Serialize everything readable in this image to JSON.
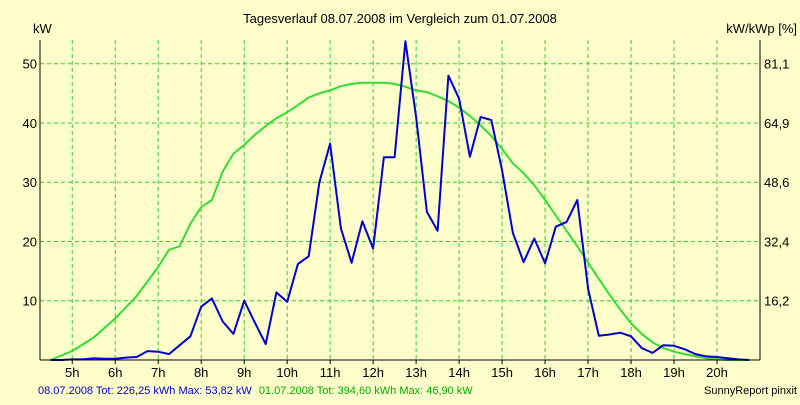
{
  "colors": {
    "background": "#ffffcc",
    "grid": "#33cc33",
    "series_1": "#0000cc",
    "series_2": "#33dd33",
    "axis": "#000000"
  },
  "footer": {
    "series_1_text": "08.07.2008 Tot: 226,25 kWh Max: 53,82 kW",
    "series_2_text": "01.07.2008 Tot: 394,60 kWh Max: 46,90 kW",
    "credit": "SunnyReport pinxit"
  },
  "chart_data": {
    "type": "line",
    "title": "Tagesverlauf 08.07.2008 im Vergleich zum 01.07.2008",
    "ylabel_left": "kW",
    "ylabel_right": "kW/kWp [%]",
    "x_ticks": [
      "5h",
      "6h",
      "7h",
      "8h",
      "9h",
      "10h",
      "11h",
      "12h",
      "13h",
      "14h",
      "15h",
      "16h",
      "17h",
      "18h",
      "19h",
      "20h"
    ],
    "x_tick_hours": [
      5,
      6,
      7,
      8,
      9,
      10,
      11,
      12,
      13,
      14,
      15,
      16,
      17,
      18,
      19,
      20
    ],
    "y_ticks_left": [
      "10",
      "20",
      "30",
      "40",
      "50"
    ],
    "y_tick_values_left": [
      10,
      20,
      30,
      40,
      50
    ],
    "y_ticks_right": [
      "16,2",
      "32,4",
      "48,6",
      "64,9",
      "81,1"
    ],
    "xlim": [
      4.25,
      21.0
    ],
    "ylim": [
      0,
      54
    ],
    "grid": true,
    "legend": "bottom",
    "series": [
      {
        "name": "08.07.2008",
        "x": [
          4.5,
          4.75,
          5.0,
          5.25,
          5.5,
          5.75,
          6.0,
          6.25,
          6.5,
          6.75,
          7.0,
          7.25,
          7.5,
          7.75,
          8.0,
          8.25,
          8.5,
          8.75,
          9.0,
          9.25,
          9.5,
          9.75,
          10.0,
          10.25,
          10.5,
          10.75,
          11.0,
          11.25,
          11.5,
          11.75,
          12.0,
          12.25,
          12.5,
          12.75,
          13.0,
          13.25,
          13.5,
          13.75,
          14.0,
          14.25,
          14.5,
          14.75,
          15.0,
          15.25,
          15.5,
          15.75,
          16.0,
          16.25,
          16.5,
          16.75,
          17.0,
          17.25,
          17.5,
          17.75,
          18.0,
          18.25,
          18.5,
          18.75,
          19.0,
          19.25,
          19.5,
          19.75,
          20.0,
          20.25,
          20.5,
          20.75
        ],
        "y": [
          0,
          0,
          0.1,
          0.1,
          0.3,
          0.2,
          0.2,
          0.4,
          0.5,
          1.5,
          1.4,
          1.0,
          2.5,
          4.0,
          9.0,
          10.4,
          6.5,
          4.4,
          10.0,
          6.3,
          2.7,
          11.4,
          9.8,
          16.2,
          17.5,
          30.0,
          36.5,
          22.2,
          16.4,
          23.4,
          18.8,
          34.2,
          34.2,
          53.8,
          41.0,
          25.0,
          21.8,
          48.0,
          44.1,
          34.3,
          41.0,
          40.5,
          32.0,
          21.5,
          16.5,
          20.5,
          16.3,
          22.5,
          23.3,
          27.0,
          12.0,
          4.1,
          4.3,
          4.6,
          4.0,
          2.0,
          1.2,
          2.5,
          2.4,
          1.8,
          1.0,
          0.6,
          0.5,
          0.3,
          0.1,
          0
        ]
      },
      {
        "name": "01.07.2008",
        "x": [
          4.5,
          5.0,
          5.5,
          6.0,
          6.5,
          7.0,
          7.25,
          7.5,
          7.75,
          8.0,
          8.25,
          8.5,
          8.75,
          9.0,
          9.25,
          9.5,
          9.75,
          10.0,
          10.25,
          10.5,
          10.75,
          11.0,
          11.25,
          11.5,
          11.75,
          12.0,
          12.25,
          12.5,
          12.75,
          13.0,
          13.25,
          13.5,
          13.75,
          14.0,
          14.25,
          14.5,
          14.75,
          15.0,
          15.25,
          15.5,
          15.75,
          16.0,
          16.25,
          16.5,
          16.75,
          17.0,
          17.25,
          17.5,
          17.75,
          18.0,
          18.25,
          18.5,
          18.75,
          19.0,
          19.25,
          19.5,
          19.75,
          20.0,
          20.25,
          20.5,
          20.75
        ],
        "y": [
          0,
          1.5,
          3.8,
          7.0,
          10.8,
          15.7,
          18.6,
          19.2,
          23.0,
          25.8,
          27.0,
          31.8,
          34.8,
          36.3,
          38.0,
          39.5,
          40.8,
          41.8,
          43.0,
          44.3,
          45.0,
          45.5,
          46.2,
          46.6,
          46.8,
          46.8,
          46.8,
          46.6,
          46.1,
          45.5,
          45.2,
          44.5,
          43.7,
          42.6,
          41.2,
          39.6,
          37.8,
          35.6,
          33.2,
          31.5,
          29.5,
          27.0,
          24.4,
          21.8,
          19.2,
          16.4,
          13.7,
          11.0,
          8.5,
          6.2,
          4.4,
          3.0,
          2.0,
          1.4,
          1.0,
          0.6,
          0.3,
          0.1,
          0,
          0,
          0
        ]
      }
    ]
  }
}
